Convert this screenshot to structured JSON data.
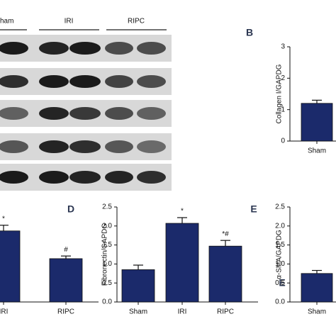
{
  "blot": {
    "labels": [
      "ham",
      "IRI",
      "RIPC"
    ]
  },
  "chart_data": [
    {
      "type": "bar",
      "categories": [
        "IRI",
        "RIPC"
      ],
      "values": [
        1.87,
        1.14
      ],
      "errors": [
        0.15,
        0.07
      ],
      "annotations": [
        "*",
        "#"
      ],
      "color": "#1b2a6b",
      "ylim": [
        0,
        2.5
      ]
    },
    {
      "type": "bar",
      "panel": "D",
      "y_label": "Fibronectin/GAPDG",
      "categories": [
        "Sham",
        "IRI",
        "RIPC"
      ],
      "values": [
        0.85,
        2.07,
        1.47
      ],
      "errors": [
        0.12,
        0.15,
        0.15
      ],
      "annotations": [
        null,
        "*",
        "*#"
      ],
      "color": "#1b2a6b",
      "ylim": [
        0,
        2.5
      ],
      "yticks": [
        {
          "value": 0,
          "label": "0.0"
        },
        0.5,
        {
          "value": 1,
          "label": "1.0"
        },
        1.5,
        {
          "value": 2,
          "label": "2.0"
        },
        2.5
      ]
    },
    {
      "type": "bar",
      "panel": "B",
      "y_label": "Collagen I/GAPDG",
      "categories": [
        "Sham"
      ],
      "values": [
        1.2
      ],
      "errors": [
        0.1
      ],
      "color": "#1b2a6b",
      "ylim": [
        0,
        3
      ],
      "yticks": [
        0,
        1,
        2,
        3
      ]
    },
    {
      "type": "bar",
      "panel": "E",
      "y_label": "α-SMA/GAPDG",
      "overlay_text": "E",
      "categories": [
        "Sham"
      ],
      "values": [
        0.75
      ],
      "errors": [
        0.08
      ],
      "color": "#1b2a6b",
      "ylim": [
        0,
        2.5
      ],
      "yticks": [
        {
          "value": 0,
          "label": "0.0"
        },
        0.5,
        {
          "value": 1,
          "label": "1.0"
        },
        1.5,
        {
          "value": 2,
          "label": "2.0"
        },
        2.5
      ]
    }
  ]
}
